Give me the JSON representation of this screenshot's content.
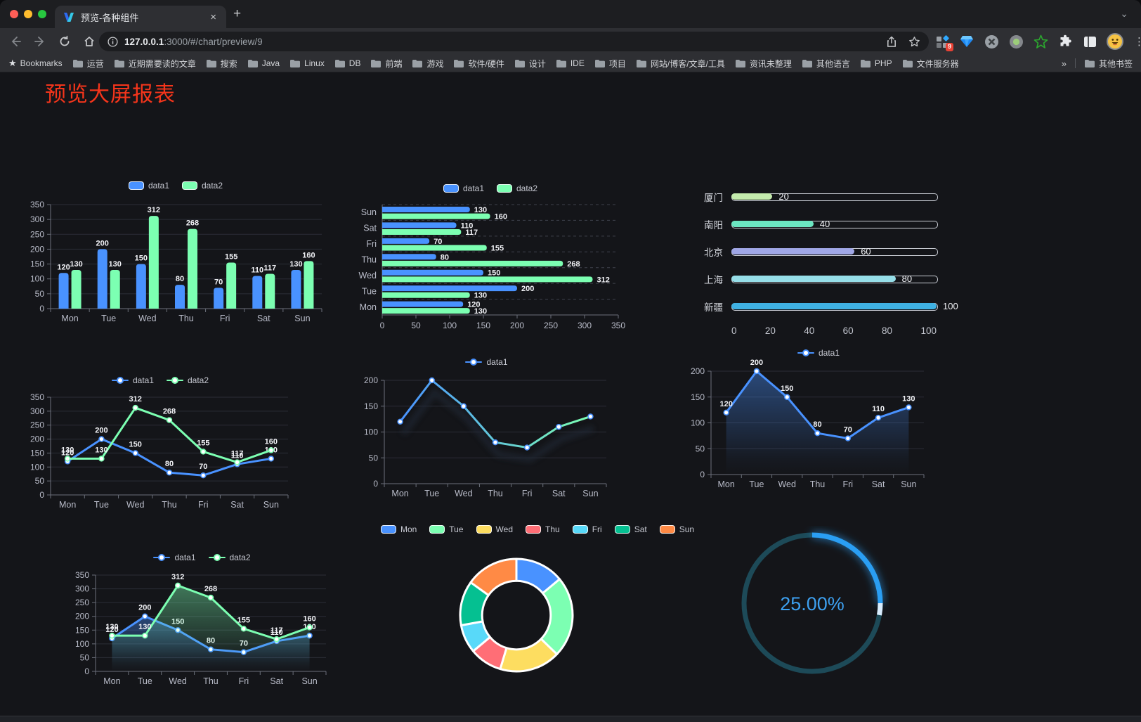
{
  "browser": {
    "tab_title": "预览-各种组件",
    "close_glyph": "×",
    "new_tab_glyph": "+",
    "tab_search_glyph": "⌄",
    "url": {
      "host": "127.0.0.1",
      "path": ":3000/#/chart/preview/9"
    },
    "extension_badge": "9",
    "menu_glyph": "⋮",
    "bookmarks": {
      "star_glyph": "★",
      "label": "Bookmarks",
      "items": [
        "运营",
        "近期需要读的文章",
        "搜索",
        "Java",
        "Linux",
        "DB",
        "前端",
        "游戏",
        "软件/硬件",
        "设计",
        "IDE",
        "项目",
        "网站/博客/文章/工具",
        "资讯未整理",
        "其他语言",
        "PHP",
        "文件服务器"
      ],
      "overflow_glyph": "»",
      "other_label": "其他书签"
    }
  },
  "page": {
    "title": "预览大屏报表",
    "title_color": "#f5351b",
    "background": "#141519"
  },
  "colors": {
    "data1": "#4992ff",
    "data2": "#7cffb2",
    "axis_label": "#b9bcc9",
    "axis_line": "#6b6f7a",
    "value_label": "#f2f3f7",
    "grid_line": "#2b2d37",
    "dashed_grid": "#3e414c",
    "legend_text": "#c6c8d1"
  },
  "chart_data": [
    {
      "id": "bar-grouped",
      "type": "bar",
      "categories": [
        "Mon",
        "Tue",
        "Wed",
        "Thu",
        "Fri",
        "Sat",
        "Sun"
      ],
      "series": [
        {
          "name": "data1",
          "color": "#4992ff",
          "values": [
            120,
            200,
            150,
            80,
            70,
            110,
            130
          ]
        },
        {
          "name": "data2",
          "color": "#7cffb2",
          "values": [
            130,
            130,
            312,
            268,
            155,
            117,
            160
          ]
        }
      ],
      "ylim": [
        0,
        350
      ],
      "ystep": 50,
      "legend_position": "top",
      "grid": true
    },
    {
      "id": "hbar-grouped",
      "type": "bar",
      "orientation": "horizontal",
      "categories": [
        "Mon",
        "Tue",
        "Wed",
        "Thu",
        "Fri",
        "Sat",
        "Sun"
      ],
      "series": [
        {
          "name": "data1",
          "color": "#4992ff",
          "values": [
            120,
            200,
            150,
            80,
            70,
            110,
            130
          ]
        },
        {
          "name": "data2",
          "color": "#7cffb2",
          "values": [
            130,
            130,
            312,
            268,
            155,
            117,
            160
          ]
        }
      ],
      "xlim": [
        0,
        350
      ],
      "xstep": 50,
      "legend_position": "top"
    },
    {
      "id": "progress-bars",
      "type": "bar",
      "orientation": "horizontal",
      "categories": [
        "厦门",
        "南阳",
        "北京",
        "上海",
        "新疆"
      ],
      "values": [
        20,
        40,
        60,
        80,
        100
      ],
      "colors": [
        "#c4ebad",
        "#6be6c1",
        "#a0a7e6",
        "#96dee8",
        "#3fb1e3"
      ],
      "xlim": [
        0,
        100
      ],
      "xstep": 20,
      "axis_ticks": [
        "0",
        "20",
        "40",
        "60",
        "80",
        "100"
      ]
    },
    {
      "id": "line-two",
      "type": "line",
      "categories": [
        "Mon",
        "Tue",
        "Wed",
        "Thu",
        "Fri",
        "Sat",
        "Sun"
      ],
      "series": [
        {
          "name": "data1",
          "color": "#4992ff",
          "values": [
            120,
            200,
            150,
            80,
            70,
            110,
            130
          ]
        },
        {
          "name": "data2",
          "color": "#7cffb2",
          "values": [
            130,
            130,
            312,
            268,
            155,
            117,
            160
          ]
        }
      ],
      "ylim": [
        0,
        350
      ],
      "ystep": 50,
      "point_labels": true
    },
    {
      "id": "line-gradient",
      "type": "line",
      "categories": [
        "Mon",
        "Tue",
        "Wed",
        "Thu",
        "Fri",
        "Sat",
        "Sun"
      ],
      "series": [
        {
          "name": "data1",
          "gradient": [
            "#4992ff",
            "#7cffb2"
          ],
          "values": [
            120,
            200,
            150,
            80,
            70,
            110,
            130
          ],
          "shadow": true
        }
      ],
      "ylim": [
        0,
        200
      ],
      "ystep": 50,
      "point_labels": false
    },
    {
      "id": "line-area",
      "type": "area",
      "categories": [
        "Mon",
        "Tue",
        "Wed",
        "Thu",
        "Fri",
        "Sat",
        "Sun"
      ],
      "series": [
        {
          "name": "data1",
          "color": "#4992ff",
          "values": [
            120,
            200,
            150,
            80,
            70,
            110,
            130
          ],
          "area": true
        }
      ],
      "ylim": [
        0,
        200
      ],
      "ystep": 50,
      "point_labels": true
    },
    {
      "id": "line-two-area",
      "type": "area",
      "categories": [
        "Mon",
        "Tue",
        "Wed",
        "Thu",
        "Fri",
        "Sat",
        "Sun"
      ],
      "series": [
        {
          "name": "data1",
          "color": "#4992ff",
          "values": [
            120,
            200,
            150,
            80,
            70,
            110,
            130
          ],
          "area": true
        },
        {
          "name": "data2",
          "color": "#7cffb2",
          "values": [
            130,
            130,
            312,
            268,
            155,
            117,
            160
          ],
          "area": true
        }
      ],
      "ylim": [
        0,
        350
      ],
      "ystep": 50,
      "point_labels": true
    },
    {
      "id": "donut",
      "type": "pie",
      "categories": [
        "Mon",
        "Tue",
        "Wed",
        "Thu",
        "Fri",
        "Sat",
        "Sun"
      ],
      "values": [
        120,
        200,
        150,
        80,
        70,
        110,
        130
      ],
      "colors": [
        "#4992ff",
        "#7cffb2",
        "#fddd60",
        "#ff6e76",
        "#58d9f9",
        "#05c091",
        "#ff8a45"
      ],
      "inner_radius_ratio": 0.61,
      "legend_position": "top"
    },
    {
      "id": "gauge",
      "type": "gauge",
      "value": 25,
      "label": "25.00%",
      "arc_color": "#2b9ef3",
      "cap_color": "#d8ecfd",
      "track_color": "#1d4a58",
      "text_color": "#3da0f0"
    }
  ]
}
